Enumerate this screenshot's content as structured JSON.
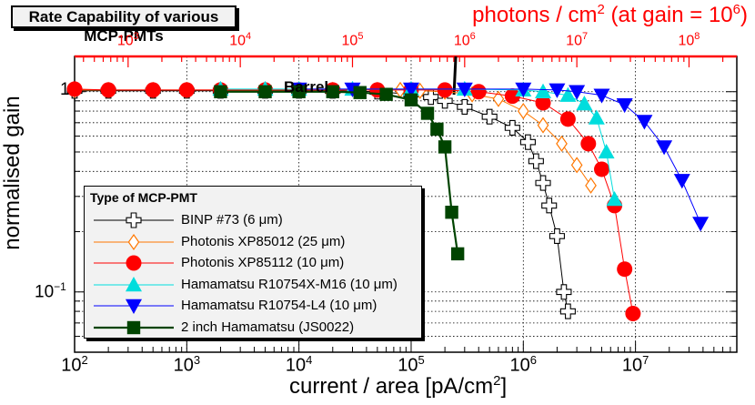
{
  "chart_data": {
    "type": "line",
    "title": "Rate Capability of various MCP-PMTs",
    "xlabel": "current / area",
    "xlabel_unit_base": "[pA/cm",
    "xlabel_unit_exp": "2",
    "xlabel_unit_end": "]",
    "top_axis_label": "photons / cm",
    "top_axis_label_exp": "2",
    "top_axis_label_mid": "  (at gain = 10",
    "top_axis_label_gain_exp": "6",
    "top_axis_label_end": ")",
    "ylabel": "normalised gain",
    "xscale": "log",
    "yscale": "log",
    "xlim": [
      100,
      80000000
    ],
    "ylim": [
      0.05,
      1.5
    ],
    "top_axis_ticks": [
      {
        "base": "10",
        "exp": "3",
        "x_current": 300
      },
      {
        "base": "10",
        "exp": "4",
        "x_current": 3000
      },
      {
        "base": "10",
        "exp": "5",
        "x_current": 30000
      },
      {
        "base": "10",
        "exp": "6",
        "x_current": 300000
      },
      {
        "base": "10",
        "exp": "7",
        "x_current": 3000000
      },
      {
        "base": "10",
        "exp": "8",
        "x_current": 30000000
      }
    ],
    "x_ticks": [
      {
        "base": "10",
        "exp": "2",
        "value": 100
      },
      {
        "base": "10",
        "exp": "3",
        "value": 1000
      },
      {
        "base": "10",
        "exp": "4",
        "value": 10000
      },
      {
        "base": "10",
        "exp": "5",
        "value": 100000
      },
      {
        "base": "10",
        "exp": "6",
        "value": 1000000
      },
      {
        "base": "10",
        "exp": "7",
        "value": 10000000
      }
    ],
    "y_ticks": [
      {
        "text": "1",
        "base": "",
        "exp": "",
        "value": 1
      },
      {
        "text": "",
        "base": "10",
        "exp": "−1",
        "value": 0.1
      }
    ],
    "annotation": {
      "text": "Barrel",
      "x": 250000
    },
    "legend_title": "Type of MCP-PMT",
    "legend_position": "bottom-left",
    "grid": true,
    "series": [
      {
        "name": "BINP #73  (6 μm)",
        "marker": "cross-open",
        "color": "#000000",
        "x": [
          100,
          200,
          500,
          1000,
          2000,
          5000,
          10000,
          20000,
          50000,
          100000,
          150000,
          200000,
          300000,
          500000,
          800000,
          1100000,
          1300000,
          1500000,
          1700000,
          2000000,
          2300000,
          2500000
        ],
        "y": [
          1.01,
          1.01,
          1.01,
          1.01,
          1.01,
          1.01,
          1.01,
          1.01,
          1.0,
          0.97,
          0.94,
          0.9,
          0.84,
          0.75,
          0.66,
          0.56,
          0.45,
          0.35,
          0.27,
          0.19,
          0.1,
          0.08
        ]
      },
      {
        "name": "Photonis XP85012  (25 μm)",
        "marker": "diamond-open",
        "color": "#ff7700",
        "x": [
          100,
          200,
          500,
          1000,
          2000,
          5000,
          10000,
          20000,
          50000,
          80000,
          120000,
          200000,
          350000,
          600000,
          1000000,
          1500000,
          2200000,
          3000000,
          4000000
        ],
        "y": [
          1.02,
          1.02,
          1.02,
          1.02,
          1.02,
          1.02,
          1.02,
          1.02,
          1.02,
          1.02,
          1.01,
          1.0,
          0.97,
          0.92,
          0.8,
          0.68,
          0.55,
          0.43,
          0.34
        ]
      },
      {
        "name": "Photonis XP85112  (10 μm)",
        "marker": "circle",
        "color": "#ff0000",
        "x": [
          100,
          200,
          500,
          1000,
          2000,
          5000,
          10000,
          20000,
          50000,
          100000,
          200000,
          400000,
          800000,
          1500000,
          2500000,
          3800000,
          5000000,
          6500000,
          8000000,
          9500000
        ],
        "y": [
          1.03,
          1.02,
          1.02,
          1.02,
          1.02,
          1.02,
          1.02,
          1.02,
          1.02,
          1.02,
          1.02,
          1.0,
          0.95,
          0.88,
          0.73,
          0.55,
          0.41,
          0.27,
          0.13,
          0.078
        ]
      },
      {
        "name": "Hamamatsu R10754X-M16  (10 μm)",
        "marker": "triangle-up",
        "color": "#00dddd",
        "x": [
          2000,
          5000,
          10000,
          30000,
          100000,
          300000,
          1000000,
          1500000,
          2500000,
          3500000,
          4500000,
          5500000,
          6500000
        ],
        "y": [
          1.03,
          1.03,
          1.03,
          1.03,
          1.03,
          1.03,
          1.02,
          1.0,
          0.96,
          0.87,
          0.74,
          0.5,
          0.29
        ]
      },
      {
        "name": "Hamamatsu R10754-L4  (10 μm)",
        "marker": "triangle-down",
        "color": "#0000ff",
        "x": [
          10000,
          30000,
          100000,
          300000,
          1000000,
          2000000,
          3000000,
          5000000,
          8000000,
          12000000,
          18000000,
          26000000,
          38000000
        ],
        "y": [
          1.03,
          1.03,
          1.03,
          1.03,
          1.03,
          1.02,
          1.0,
          0.96,
          0.86,
          0.71,
          0.53,
          0.36,
          0.22
        ]
      },
      {
        "name": "2 inch Hamamatsu (JS0022)",
        "marker": "square",
        "color": "#004400",
        "x": [
          2000,
          5000,
          10000,
          20000,
          35000,
          60000,
          100000,
          140000,
          170000,
          200000,
          230000,
          260000
        ],
        "y": [
          1.0,
          1.0,
          1.0,
          1.0,
          0.99,
          0.97,
          0.91,
          0.78,
          0.65,
          0.53,
          0.25,
          0.155
        ]
      }
    ]
  }
}
